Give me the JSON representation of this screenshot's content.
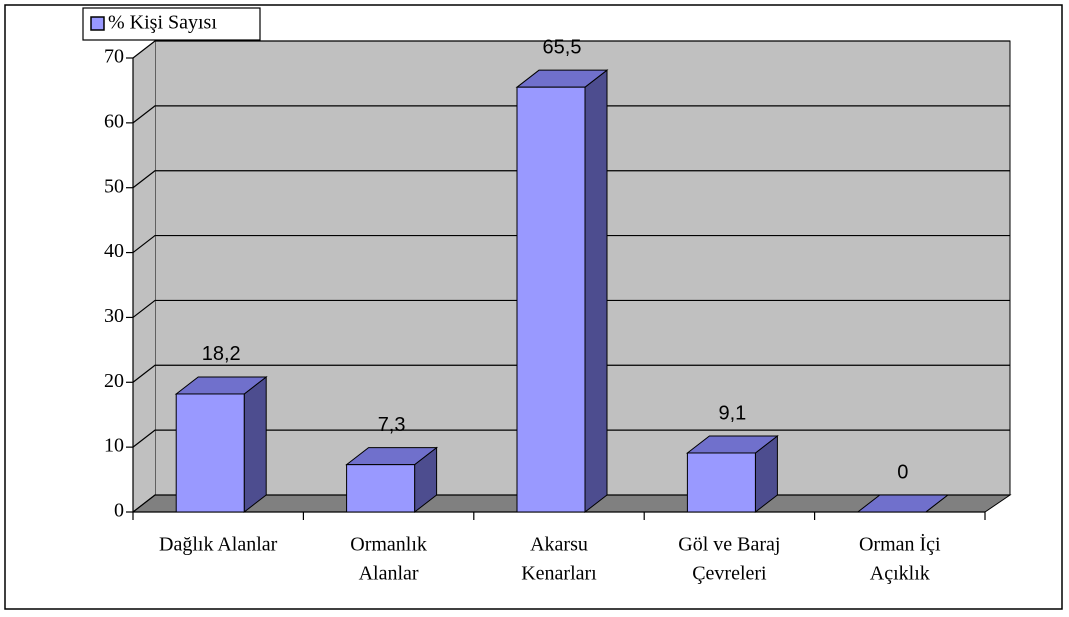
{
  "chart_data": {
    "type": "bar3d",
    "categories": [
      [
        "Dağlık Alanlar"
      ],
      [
        "Ormanlık",
        "Alanlar"
      ],
      [
        "Akarsu",
        "Kenarları"
      ],
      [
        "Göl ve Baraj",
        "Çevreleri"
      ],
      [
        "Orman İçi",
        "Açıklık"
      ]
    ],
    "series": [
      {
        "name": "% Kişi Sayısı",
        "color": "#9999ff",
        "values": [
          18.2,
          7.3,
          65.5,
          9.1,
          0
        ],
        "value_labels": [
          "18,2",
          "7,3",
          "65,5",
          "9,1",
          "0"
        ]
      }
    ],
    "ylim": [
      0,
      70
    ],
    "yticks": [
      0,
      10,
      20,
      30,
      40,
      50,
      60,
      70
    ],
    "grid": true,
    "legend": "top-left"
  }
}
